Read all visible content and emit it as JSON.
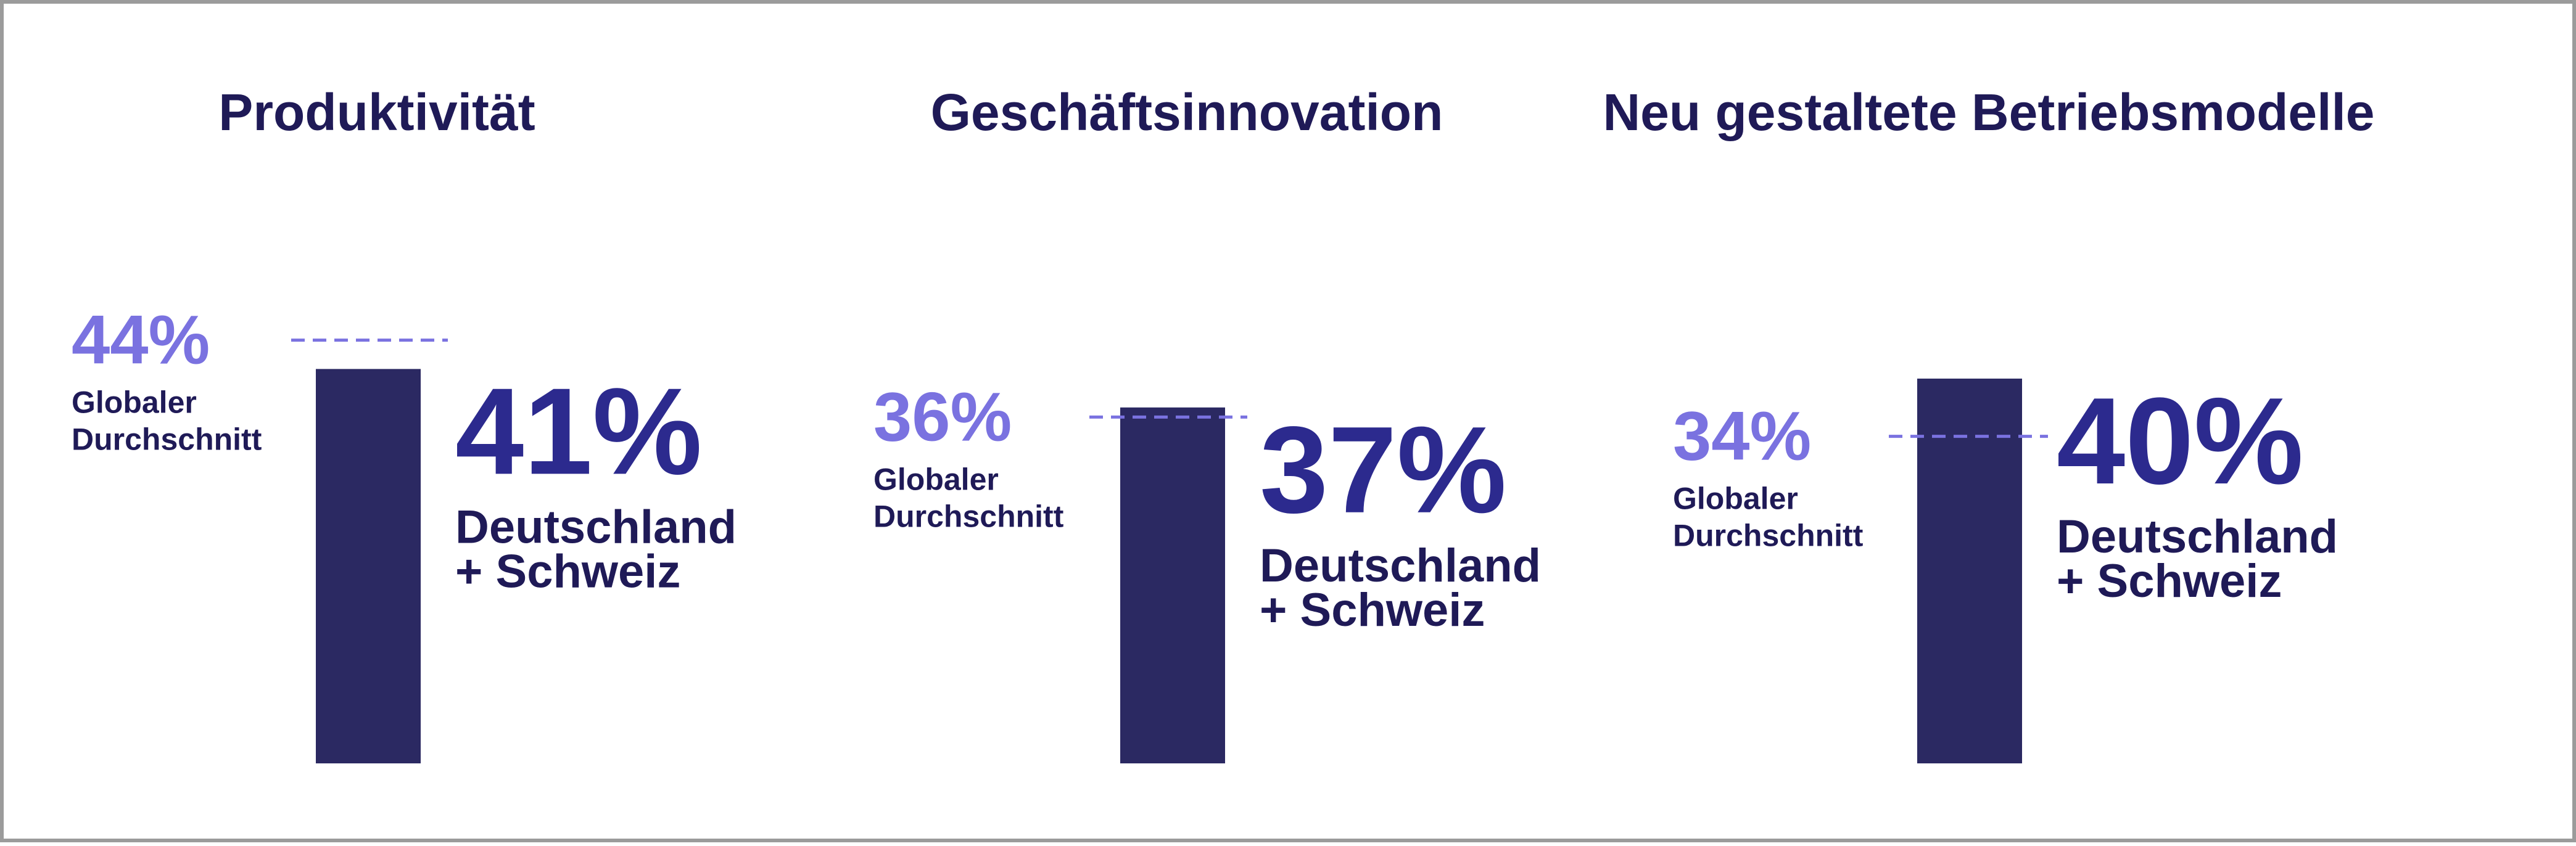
{
  "chart_data": {
    "type": "bar",
    "colors": {
      "bar": "#2b2962",
      "avg_line": "#7a72e0",
      "avg_value": "#7a72e0",
      "local_value": "#2c2a8e",
      "text": "#1f1a57"
    },
    "panels": [
      {
        "title": "Produktivität",
        "average_value": 44,
        "average_label_text": "44%",
        "average_label_lines": [
          "Globaler",
          "Durchschnitt"
        ],
        "value": 41,
        "value_label_text": "41%",
        "value_label_lines": [
          "Deutschland",
          "+ Schweiz"
        ]
      },
      {
        "title": "Geschäftsinnovation",
        "average_value": 36,
        "average_label_text": "36%",
        "average_label_lines": [
          "Globaler",
          "Durchschnitt"
        ],
        "value": 37,
        "value_label_text": "37%",
        "value_label_lines": [
          "Deutschland",
          "+ Schweiz"
        ]
      },
      {
        "title": "Neu gestaltete Betriebsmodelle",
        "average_value": 34,
        "average_label_text": "34%",
        "average_label_lines": [
          "Globaler",
          "Durchschnitt"
        ],
        "value": 40,
        "value_label_text": "40%",
        "value_label_lines": [
          "Deutschland",
          "+ Schweiz"
        ]
      }
    ]
  }
}
